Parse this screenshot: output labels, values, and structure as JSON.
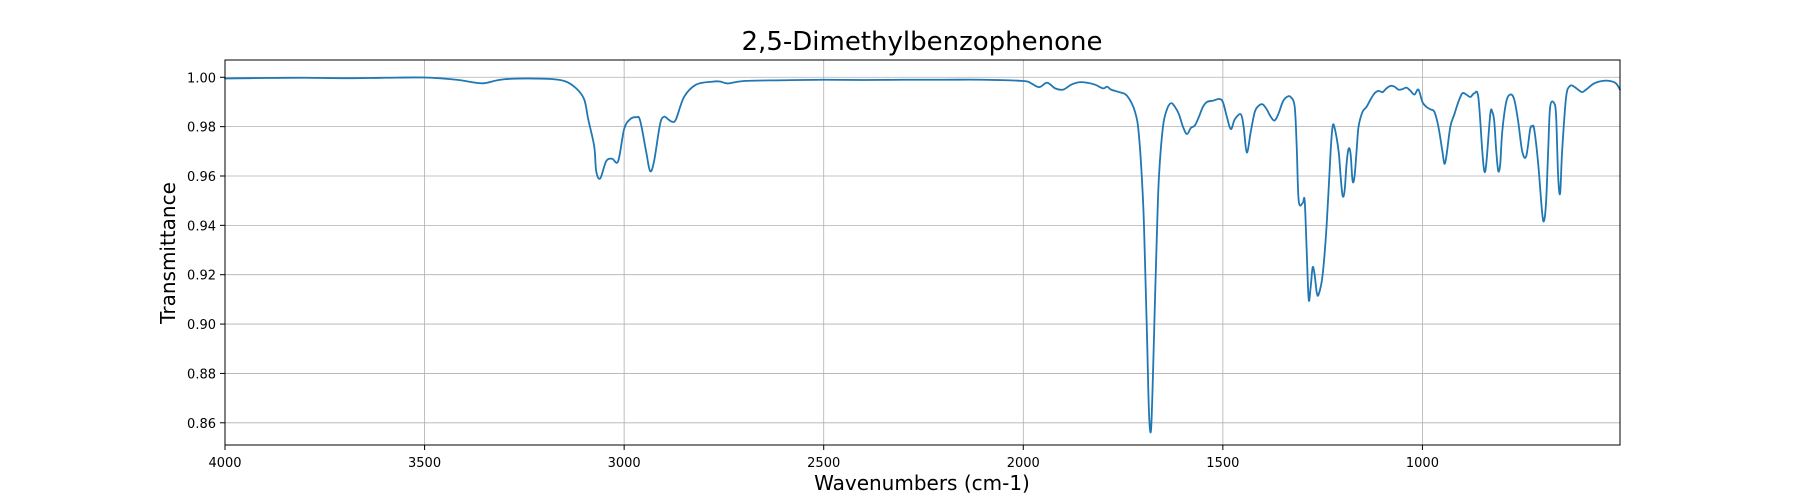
{
  "chart_data": {
    "type": "line",
    "title": "2,5-Dimethylbenzophenone",
    "xlabel": "Wavenumbers (cm-1)",
    "ylabel": "Transmittance",
    "xlim": [
      4000,
      505
    ],
    "ylim": [
      0.851,
      1.007
    ],
    "x_reversed": true,
    "grid": true,
    "x_ticks": [
      4000,
      3500,
      3000,
      2500,
      2000,
      1500,
      1000
    ],
    "x_tick_labels": [
      "4000",
      "3500",
      "3000",
      "2500",
      "2000",
      "1500",
      "1000"
    ],
    "y_ticks": [
      0.86,
      0.88,
      0.9,
      0.92,
      0.94,
      0.96,
      0.98,
      1.0
    ],
    "y_tick_labels": [
      "0.86",
      "0.88",
      "0.90",
      "0.92",
      "0.94",
      "0.96",
      "0.98",
      "1.00"
    ],
    "series": [
      {
        "color": "#1f77b4",
        "x": [
          4000,
          3900,
          3800,
          3700,
          3600,
          3500,
          3420,
          3380,
          3350,
          3300,
          3200,
          3150,
          3120,
          3100,
          3090,
          3075,
          3070,
          3060,
          3045,
          3030,
          3015,
          3000,
          2985,
          2970,
          2960,
          2945,
          2935,
          2925,
          2910,
          2900,
          2890,
          2880,
          2870,
          2850,
          2820,
          2780,
          2760,
          2740,
          2700,
          2600,
          2500,
          2400,
          2300,
          2200,
          2100,
          2000,
          1980,
          1960,
          1940,
          1920,
          1900,
          1880,
          1860,
          1840,
          1820,
          1800,
          1790,
          1780,
          1760,
          1740,
          1720,
          1710,
          1700,
          1695,
          1690,
          1685,
          1680,
          1675,
          1670,
          1665,
          1660,
          1650,
          1640,
          1630,
          1620,
          1610,
          1600,
          1590,
          1580,
          1570,
          1560,
          1550,
          1540,
          1525,
          1510,
          1500,
          1490,
          1480,
          1470,
          1455,
          1448,
          1440,
          1430,
          1420,
          1410,
          1400,
          1390,
          1380,
          1370,
          1360,
          1350,
          1340,
          1330,
          1320,
          1315,
          1310,
          1300,
          1295,
          1290,
          1285,
          1280,
          1275,
          1270,
          1265,
          1260,
          1250,
          1240,
          1230,
          1225,
          1220,
          1210,
          1205,
          1200,
          1195,
          1190,
          1185,
          1180,
          1175,
          1170,
          1165,
          1160,
          1150,
          1140,
          1130,
          1120,
          1110,
          1100,
          1090,
          1080,
          1070,
          1060,
          1050,
          1040,
          1030,
          1020,
          1010,
          1000,
          990,
          980,
          970,
          960,
          950,
          945,
          940,
          930,
          920,
          910,
          900,
          890,
          880,
          870,
          860,
          850,
          845,
          840,
          830,
          825,
          820,
          815,
          810,
          805,
          800,
          790,
          780,
          770,
          760,
          750,
          740,
          730,
          725,
          720,
          710,
          700,
          695,
          690,
          685,
          680,
          670,
          665,
          660,
          655,
          650,
          640,
          630,
          620,
          610,
          600,
          590,
          570,
          550,
          530,
          515,
          505
        ],
        "y": [
          0.9995,
          0.9997,
          0.9998,
          0.9996,
          0.9998,
          0.9999,
          0.999,
          0.998,
          0.9976,
          0.9992,
          0.9994,
          0.9985,
          0.9955,
          0.991,
          0.983,
          0.972,
          0.962,
          0.959,
          0.966,
          0.967,
          0.966,
          0.979,
          0.983,
          0.9838,
          0.9825,
          0.97,
          0.962,
          0.966,
          0.981,
          0.984,
          0.983,
          0.982,
          0.983,
          0.992,
          0.997,
          0.9982,
          0.9983,
          0.9975,
          0.9985,
          0.9988,
          0.999,
          0.9989,
          0.999,
          0.999,
          0.999,
          0.9985,
          0.9975,
          0.996,
          0.9978,
          0.9955,
          0.995,
          0.997,
          0.998,
          0.9978,
          0.997,
          0.9955,
          0.9962,
          0.995,
          0.994,
          0.9925,
          0.986,
          0.976,
          0.95,
          0.925,
          0.895,
          0.864,
          0.857,
          0.88,
          0.91,
          0.938,
          0.96,
          0.98,
          0.987,
          0.9895,
          0.988,
          0.985,
          0.98,
          0.977,
          0.9795,
          0.9805,
          0.984,
          0.988,
          0.99,
          0.9905,
          0.9912,
          0.99,
          0.984,
          0.979,
          0.983,
          0.985,
          0.98,
          0.9695,
          0.978,
          0.986,
          0.9885,
          0.989,
          0.987,
          0.984,
          0.9825,
          0.9855,
          0.99,
          0.992,
          0.992,
          0.988,
          0.972,
          0.95,
          0.949,
          0.95,
          0.93,
          0.91,
          0.915,
          0.923,
          0.92,
          0.913,
          0.912,
          0.92,
          0.94,
          0.97,
          0.98,
          0.9795,
          0.97,
          0.96,
          0.952,
          0.954,
          0.965,
          0.971,
          0.969,
          0.958,
          0.96,
          0.97,
          0.98,
          0.986,
          0.988,
          0.991,
          0.9935,
          0.9945,
          0.994,
          0.9955,
          0.9965,
          0.9962,
          0.995,
          0.9952,
          0.9958,
          0.9945,
          0.993,
          0.995,
          0.99,
          0.988,
          0.987,
          0.986,
          0.98,
          0.97,
          0.965,
          0.968,
          0.98,
          0.985,
          0.99,
          0.9935,
          0.993,
          0.992,
          0.9935,
          0.992,
          0.97,
          0.962,
          0.965,
          0.985,
          0.986,
          0.982,
          0.97,
          0.962,
          0.965,
          0.978,
          0.99,
          0.993,
          0.991,
          0.982,
          0.97,
          0.968,
          0.979,
          0.98,
          0.979,
          0.965,
          0.945,
          0.942,
          0.95,
          0.97,
          0.988,
          0.9895,
          0.984,
          0.96,
          0.953,
          0.97,
          0.992,
          0.9965,
          0.9962,
          0.995,
          0.994,
          0.995,
          0.9975,
          0.9985,
          0.9985,
          0.9975,
          0.995
        ]
      }
    ]
  }
}
